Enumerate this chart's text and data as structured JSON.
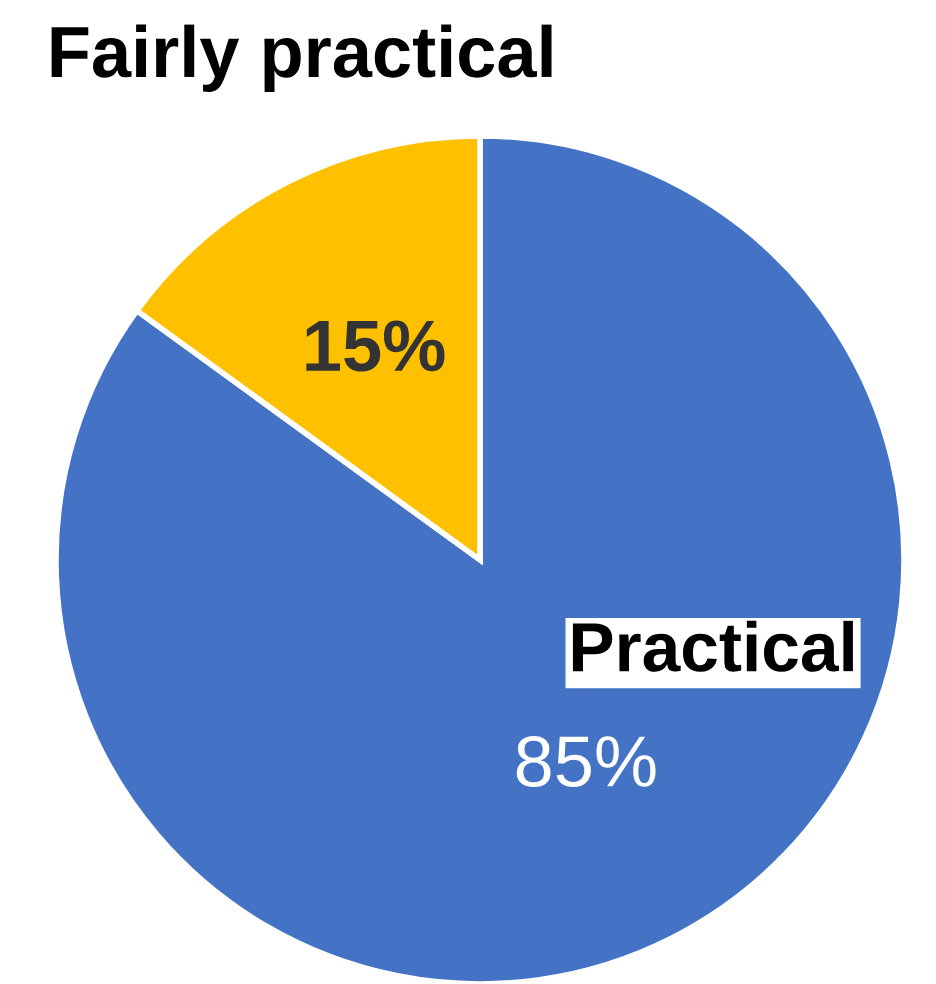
{
  "chart_data": {
    "type": "pie",
    "categories": [
      "Practical",
      "Fairly practical"
    ],
    "values": [
      85,
      15
    ],
    "colors": [
      "#4472c4",
      "#ffc000"
    ],
    "value_labels": [
      "85%",
      "15%"
    ],
    "legend": false
  }
}
